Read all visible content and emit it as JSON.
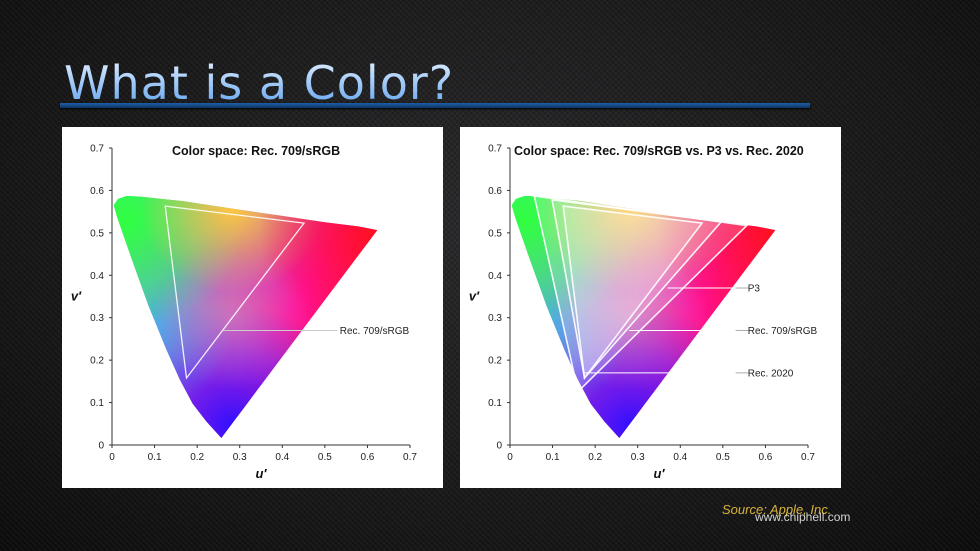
{
  "title": "What is a Color?",
  "source": "Source: Apple, Inc.",
  "watermark": "www.chiphell.com",
  "chart_data": [
    {
      "type": "gamut",
      "title": "Color space: Rec. 709/sRGB",
      "x_label": "u′",
      "y_label": "v′",
      "xlim": [
        0,
        0.7
      ],
      "ylim": [
        0,
        0.7
      ],
      "xticks": [
        0,
        0.1,
        0.2,
        0.3,
        0.4,
        0.5,
        0.6,
        0.7
      ],
      "yticks": [
        0,
        0.1,
        0.2,
        0.3,
        0.4,
        0.5,
        0.6,
        0.7
      ],
      "locus": {
        "u": [
          0.2568,
          0.2215,
          0.1893,
          0.159,
          0.1276,
          0.086,
          0.0435,
          0.0135,
          0.004,
          0.014,
          0.035,
          0.07,
          0.115,
          0.165,
          0.23,
          0.31,
          0.4,
          0.5,
          0.58,
          0.6233
        ],
        "v": [
          0.0165,
          0.0557,
          0.0975,
          0.1545,
          0.2253,
          0.3276,
          0.4465,
          0.533,
          0.565,
          0.58,
          0.587,
          0.585,
          0.58,
          0.575,
          0.565,
          0.553,
          0.54,
          0.525,
          0.515,
          0.5065
        ]
      },
      "series": [
        {
          "name": "Rec. 709/sRGB",
          "color": "#ffffff",
          "u": [
            0.451,
            0.125,
            0.175
          ],
          "v": [
            0.523,
            0.563,
            0.158
          ]
        }
      ]
    },
    {
      "type": "gamut",
      "title": "Color space: Rec. 709/sRGB vs. P3 vs. Rec. 2020",
      "x_label": "u′",
      "y_label": "v′",
      "xlim": [
        0,
        0.7
      ],
      "ylim": [
        0,
        0.7
      ],
      "xticks": [
        0,
        0.1,
        0.2,
        0.3,
        0.4,
        0.5,
        0.6,
        0.7
      ],
      "yticks": [
        0,
        0.1,
        0.2,
        0.3,
        0.4,
        0.5,
        0.6,
        0.7
      ],
      "locus": {
        "u": [
          0.2568,
          0.2215,
          0.1893,
          0.159,
          0.1276,
          0.086,
          0.0435,
          0.0135,
          0.004,
          0.014,
          0.035,
          0.07,
          0.115,
          0.165,
          0.23,
          0.31,
          0.4,
          0.5,
          0.58,
          0.6233
        ],
        "v": [
          0.0165,
          0.0557,
          0.0975,
          0.1545,
          0.2253,
          0.3276,
          0.4465,
          0.533,
          0.565,
          0.58,
          0.587,
          0.585,
          0.58,
          0.575,
          0.565,
          0.553,
          0.54,
          0.525,
          0.515,
          0.5065
        ]
      },
      "series": [
        {
          "name": "Rec. 2020",
          "color": "#ffffff",
          "u": [
            0.556,
            0.057,
            0.16
          ],
          "v": [
            0.517,
            0.587,
            0.126
          ]
        },
        {
          "name": "P3",
          "color": "#ffffff",
          "u": [
            0.496,
            0.099,
            0.175
          ],
          "v": [
            0.526,
            0.578,
            0.158
          ]
        },
        {
          "name": "Rec. 709/sRGB",
          "color": "#ffffff",
          "u": [
            0.451,
            0.125,
            0.175
          ],
          "v": [
            0.523,
            0.563,
            0.158
          ]
        }
      ]
    }
  ]
}
